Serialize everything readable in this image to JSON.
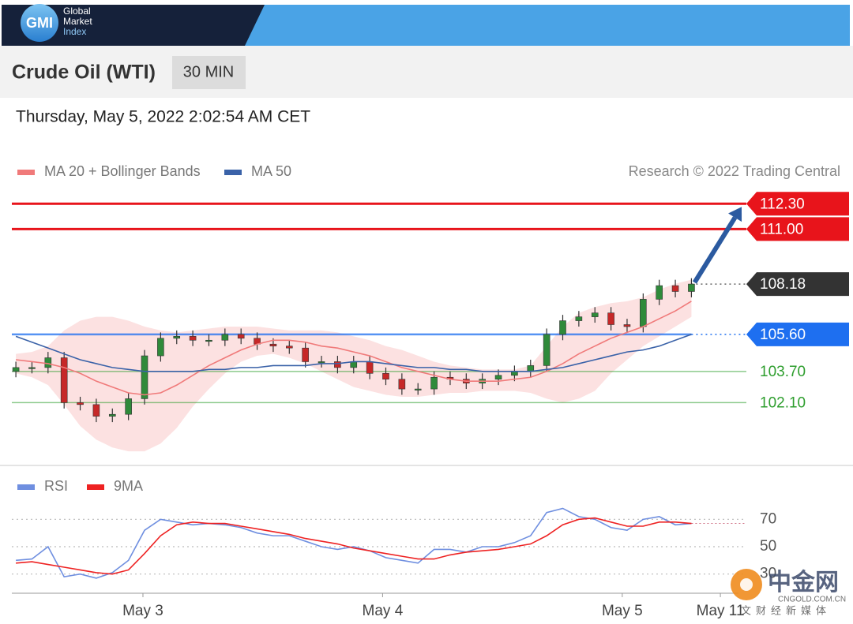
{
  "header": {
    "logo": "GMI",
    "brand": [
      "Global",
      "Market",
      "Index"
    ]
  },
  "watermark": {
    "name": "中金网",
    "site": "CNGOLD.COM.CN",
    "tagline": "文财经新媒体"
  },
  "chart_data": {
    "type": "candlestick",
    "title": "Crude Oil (WTI)",
    "timeframe": "30 MIN",
    "subtitle": "Thursday, May 5, 2022 2:02:54 AM CET",
    "source": "Research © 2022 Trading Central",
    "up_color": "#2f8a3a",
    "down_color": "#c62828",
    "xlim": [
      -0.25,
      51.8
    ],
    "xticks": [
      {
        "value": 7.9,
        "label": "May 3"
      },
      {
        "value": 22.8,
        "label": "May 4"
      },
      {
        "value": 37.7,
        "label": "May 5"
      },
      {
        "value": 43.8,
        "label": "May 11"
      }
    ],
    "ylim": [
      99,
      113.2
    ],
    "open": [
      103.7,
      103.9,
      103.9,
      104.4,
      102.1,
      102.0,
      101.4,
      101.5,
      102.3,
      104.5,
      105.4,
      105.5,
      105.3,
      105.3,
      105.6,
      105.4,
      105.1,
      105.0,
      104.9,
      104.2,
      104.2,
      103.9,
      104.2,
      103.6,
      103.3,
      102.8,
      102.8,
      103.4,
      103.3,
      103.1,
      103.3,
      103.5,
      103.7,
      104.0,
      105.6,
      106.3,
      106.5,
      106.7,
      106.1,
      106.0,
      107.4,
      108.1,
      107.8
    ],
    "high": [
      104.2,
      104.2,
      104.7,
      104.7,
      102.4,
      102.3,
      101.8,
      102.6,
      104.8,
      105.7,
      105.8,
      105.8,
      105.6,
      105.9,
      105.9,
      105.7,
      105.4,
      105.3,
      105.2,
      104.5,
      104.5,
      104.5,
      104.5,
      103.9,
      103.6,
      103.1,
      103.7,
      103.7,
      103.6,
      103.6,
      103.8,
      104.0,
      104.3,
      105.9,
      106.6,
      106.8,
      107.0,
      107.0,
      106.4,
      107.7,
      108.4,
      108.4,
      108.48
    ],
    "low": [
      103.4,
      103.6,
      103.6,
      101.8,
      101.7,
      101.1,
      101.1,
      101.2,
      102.0,
      104.2,
      105.1,
      105.0,
      105.0,
      105.0,
      105.1,
      104.8,
      104.7,
      104.6,
      103.9,
      103.9,
      103.6,
      103.6,
      103.3,
      103.0,
      102.5,
      102.5,
      102.5,
      103.0,
      102.8,
      102.8,
      103.0,
      103.2,
      103.4,
      103.7,
      105.3,
      106.0,
      106.2,
      105.8,
      105.7,
      105.7,
      107.1,
      107.5,
      107.5
    ],
    "close": [
      103.9,
      103.9,
      104.4,
      102.1,
      102.0,
      101.4,
      101.5,
      102.3,
      104.5,
      105.4,
      105.5,
      105.3,
      105.3,
      105.6,
      105.4,
      105.1,
      105.0,
      104.9,
      104.2,
      104.2,
      103.9,
      104.2,
      103.6,
      103.3,
      102.8,
      102.8,
      103.4,
      103.3,
      103.1,
      103.3,
      103.5,
      103.7,
      104.0,
      105.6,
      106.3,
      106.5,
      106.7,
      106.1,
      106.0,
      107.4,
      108.1,
      107.8,
      108.18
    ],
    "overlays": [
      {
        "name": "MA 20 + Bollinger Bands",
        "color": "#f07a7a",
        "band_color": "#fcdcdc",
        "values": [
          104.3,
          104.2,
          104.1,
          103.9,
          103.6,
          103.2,
          102.9,
          102.6,
          102.5,
          102.6,
          103.0,
          103.5,
          104.0,
          104.4,
          104.8,
          105.1,
          105.3,
          105.3,
          105.2,
          105.0,
          104.9,
          104.7,
          104.5,
          104.2,
          103.9,
          103.7,
          103.5,
          103.3,
          103.2,
          103.2,
          103.2,
          103.3,
          103.4,
          103.7,
          104.1,
          104.6,
          105.0,
          105.4,
          105.7,
          106.0,
          106.4,
          106.8,
          107.3
        ],
        "upper": [
          104.6,
          104.7,
          105.0,
          105.8,
          106.3,
          106.5,
          106.5,
          106.3,
          106.0,
          105.8,
          105.7,
          105.8,
          105.9,
          106.0,
          106.0,
          106.0,
          105.9,
          105.8,
          105.8,
          105.8,
          105.7,
          105.5,
          105.3,
          105.0,
          104.8,
          104.5,
          104.2,
          104.0,
          103.9,
          103.8,
          103.8,
          103.8,
          104.0,
          105.0,
          106.0,
          106.7,
          107.0,
          107.2,
          107.3,
          107.5,
          107.9,
          108.2,
          108.4
        ],
        "lower": [
          103.6,
          103.4,
          103.0,
          102.0,
          100.9,
          100.2,
          99.8,
          99.6,
          99.6,
          100.0,
          100.8,
          101.9,
          102.8,
          103.6,
          104.2,
          104.5,
          104.6,
          104.4,
          104.1,
          103.7,
          103.3,
          102.9,
          102.7,
          102.5,
          102.4,
          102.4,
          102.5,
          102.6,
          102.6,
          102.7,
          102.7,
          102.7,
          102.6,
          102.3,
          102.1,
          102.3,
          102.7,
          103.6,
          104.3,
          105.0,
          105.5,
          106.0,
          106.5
        ]
      },
      {
        "name": "MA 50",
        "color": "#3a62a8",
        "values": [
          105.5,
          105.2,
          104.9,
          104.6,
          104.3,
          104.1,
          103.9,
          103.8,
          103.7,
          103.7,
          103.7,
          103.7,
          103.8,
          103.8,
          103.9,
          103.9,
          104.0,
          104.0,
          104.0,
          104.1,
          104.1,
          104.2,
          104.2,
          104.1,
          104.0,
          103.9,
          103.9,
          103.8,
          103.8,
          103.7,
          103.7,
          103.7,
          103.7,
          103.8,
          103.9,
          104.1,
          104.3,
          104.5,
          104.7,
          104.8,
          105.0,
          105.3,
          105.6
        ]
      }
    ],
    "levels": [
      {
        "value": 112.3,
        "label": "112.30",
        "color": "#e8141b",
        "boxed": true,
        "line": "solid"
      },
      {
        "value": 111,
        "label": "111.00",
        "color": "#e8141b",
        "boxed": true,
        "line": "solid"
      },
      {
        "value": 108.18,
        "color": "#333333",
        "boxed": true,
        "line": "dotted"
      },
      {
        "value": 105.6,
        "label": "105.60",
        "color": "#1e6ff0",
        "boxed": true,
        "line": "solid-dotted"
      },
      {
        "value": 103.7,
        "label": "103.70",
        "color": "#2e9e2e",
        "boxed": false,
        "line": "solid"
      },
      {
        "value": 102.1,
        "label": "102.10",
        "color": "#2e9e2e",
        "boxed": false,
        "line": "solid"
      }
    ],
    "rsi": {
      "ylim": [
        20,
        80
      ],
      "yticks": [
        30,
        50,
        70
      ],
      "series": [
        {
          "name": "RSI",
          "color": "#6f8fe0",
          "values": [
            40,
            41,
            50,
            28,
            30,
            27,
            31,
            40,
            62,
            70,
            68,
            66,
            67,
            66,
            64,
            60,
            58,
            58,
            54,
            50,
            48,
            50,
            47,
            42,
            40,
            38,
            48,
            48,
            46,
            50,
            50,
            53,
            58,
            75,
            78,
            72,
            70,
            64,
            62,
            70,
            72,
            66,
            67
          ]
        },
        {
          "name": "9MA",
          "color": "#ee2222",
          "values": [
            38,
            39,
            37,
            35,
            33,
            31,
            30,
            33,
            45,
            58,
            66,
            68,
            67,
            67,
            65,
            63,
            61,
            59,
            56,
            54,
            52,
            49,
            47,
            45,
            43,
            41,
            41,
            44,
            46,
            47,
            48,
            50,
            52,
            58,
            66,
            70,
            71,
            68,
            65,
            65,
            68,
            68,
            67
          ]
        }
      ]
    }
  }
}
